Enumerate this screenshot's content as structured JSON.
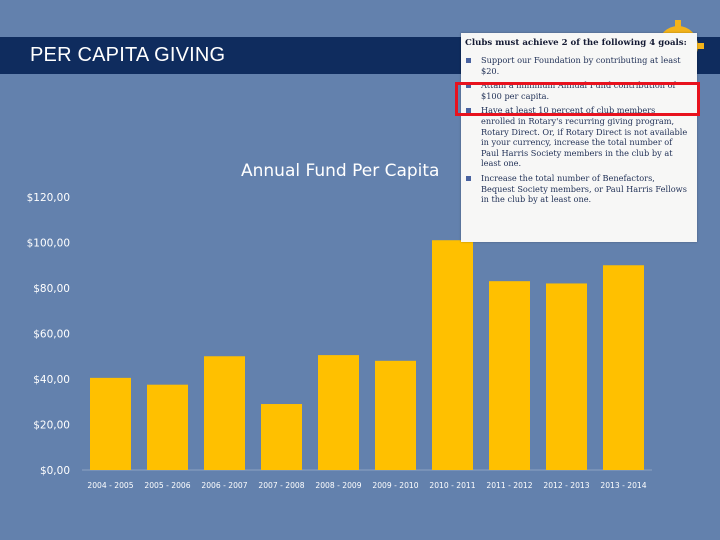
{
  "header": {
    "title": "PER CAPITA GIVING"
  },
  "goals_box": {
    "title": "Clubs must achieve 2 of the following 4 goals:",
    "items": [
      "Support our Foundation by contributing at least $20.",
      "Attain a minimum Annual Fund contribution of $100 per capita.",
      "Have at least 10 percent of club members enrolled in Rotary's recurring giving program, Rotary Direct. Or, if Rotary Direct is not available in your currency, increase the total number of Paul Harris Society members in the club by at least one.",
      "Increase the total number of Benefactors, Bequest Society members, or Paul Harris Fellows in the club by at least one."
    ],
    "highlight_color": "#e8121e"
  },
  "chart_data": {
    "type": "bar",
    "title": "Annual Fund Per Capita",
    "categories": [
      "2004 - 2005",
      "2005 - 2006",
      "2006 - 2007",
      "2007 - 2008",
      "2008 - 2009",
      "2009 - 2010",
      "2010 - 2011",
      "2011 - 2012",
      "2012 - 2013",
      "2013 - 2014"
    ],
    "values": [
      40.5,
      37.5,
      50,
      29,
      50.5,
      48,
      101,
      83,
      82,
      90
    ],
    "ylim": [
      0,
      120
    ],
    "yticks": [
      "$0,00",
      "$20,00",
      "$40,00",
      "$60,00",
      "$80,00",
      "$100,00",
      "$120,00"
    ],
    "bar_color": "#ffc000",
    "background_color": "#6381ad",
    "grid": false
  }
}
